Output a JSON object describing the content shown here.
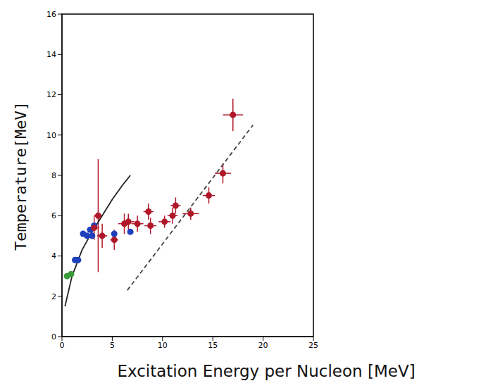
{
  "chart_data": {
    "type": "scatter",
    "x_label": "Excitation Energy per Nucleon [MeV]",
    "y_label": "Temperature[MeV]",
    "xlim": [
      0,
      25
    ],
    "xticks": [
      0,
      5,
      10,
      15,
      20,
      25
    ],
    "ylim": [
      0,
      16
    ],
    "yticks": [
      0,
      2,
      4,
      6,
      8,
      10,
      12,
      14,
      16
    ],
    "grid": false,
    "series": [
      {
        "type": "line",
        "color": "#222222",
        "line_style": "solid",
        "x": [
          0.3,
          1,
          2,
          3,
          4,
          5,
          6,
          6.8
        ],
        "values": [
          1.5,
          3.0,
          4.3,
          5.2,
          6.0,
          6.8,
          7.5,
          8.0
        ]
      },
      {
        "type": "line",
        "color": "#444444",
        "line_style": "dashed",
        "x": [
          6.5,
          19
        ],
        "values": [
          2.3,
          10.5
        ]
      },
      {
        "type": "scatter",
        "color": "#3a9a3a",
        "marker": "circle",
        "x": [
          0.5,
          0.9
        ],
        "values": [
          3.0,
          3.1
        ]
      },
      {
        "type": "scatter",
        "color": "#1f3fbf",
        "marker": "circle",
        "x": [
          1.3,
          1.6,
          2.1,
          2.5,
          2.8,
          3.0,
          3.2,
          5.2,
          6.8
        ],
        "values": [
          3.8,
          3.8,
          5.1,
          5.0,
          5.3,
          5.0,
          5.5,
          5.1,
          5.2
        ]
      },
      {
        "type": "scatter",
        "color": "#b0182a",
        "marker": "circle",
        "x": [
          3.2,
          3.6,
          4.0,
          5.2,
          6.2,
          6.6,
          7.5,
          8.6,
          8.8,
          10.2,
          11.0,
          11.3,
          12.8,
          14.6,
          16.0,
          17.0
        ],
        "values": [
          5.4,
          6.0,
          5.0,
          4.8,
          5.6,
          5.7,
          5.6,
          6.2,
          5.5,
          5.7,
          6.0,
          6.5,
          6.1,
          7.0,
          8.1,
          11.0
        ],
        "x_errors": [
          0.5,
          0.4,
          0.5,
          0.4,
          0.6,
          0.6,
          0.6,
          0.5,
          0.6,
          0.6,
          0.5,
          0.5,
          0.8,
          0.6,
          0.8,
          1.0
        ],
        "y_errors": [
          0.6,
          2.8,
          0.6,
          0.5,
          0.5,
          0.4,
          0.4,
          0.4,
          0.4,
          0.3,
          0.4,
          0.4,
          0.3,
          0.4,
          0.5,
          0.8
        ]
      }
    ]
  }
}
